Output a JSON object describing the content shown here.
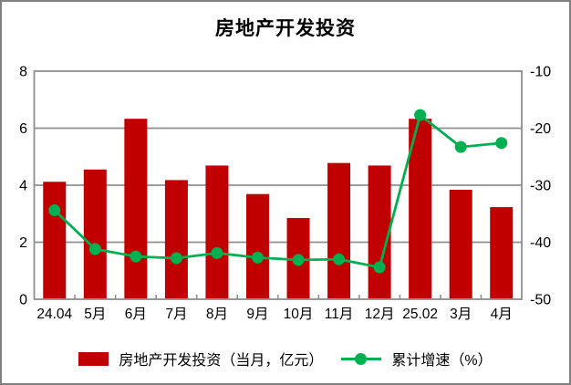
{
  "title": "房地产开发投资",
  "chart_data": {
    "type": "bar+line",
    "title": "房地产开发投资",
    "categories": [
      "24.04",
      "5月",
      "6月",
      "7月",
      "8月",
      "9月",
      "10月",
      "11月",
      "12月",
      "25.02",
      "3月",
      "4月"
    ],
    "series": [
      {
        "name": "房地产开发投资（当月，亿元）",
        "type": "bar",
        "axis": "left",
        "color": "#C00000",
        "values": [
          4.12,
          4.55,
          6.33,
          4.18,
          4.69,
          3.69,
          2.85,
          4.78,
          4.69,
          6.33,
          3.84,
          3.23
        ]
      },
      {
        "name": "累计增速（%）",
        "type": "line",
        "axis": "right",
        "color": "#00B050",
        "values": [
          -34.4,
          -41.2,
          -42.5,
          -42.8,
          -41.9,
          -42.7,
          -43.1,
          -43.0,
          -44.4,
          -17.7,
          -23.3,
          -22.6
        ]
      }
    ],
    "left_axis": {
      "range": [
        0,
        8
      ],
      "ticks": [
        "0",
        "2",
        "4",
        "6",
        "8"
      ]
    },
    "right_axis": {
      "range": [
        -50,
        -10
      ],
      "ticks": [
        "-50",
        "-40",
        "-30",
        "-20",
        "-10"
      ]
    },
    "grid": true,
    "legend_position": "bottom",
    "colors": {
      "grid": "#8F8F8F",
      "frame": "#8F8F8F",
      "border": "#808080",
      "text": "#000000"
    }
  }
}
